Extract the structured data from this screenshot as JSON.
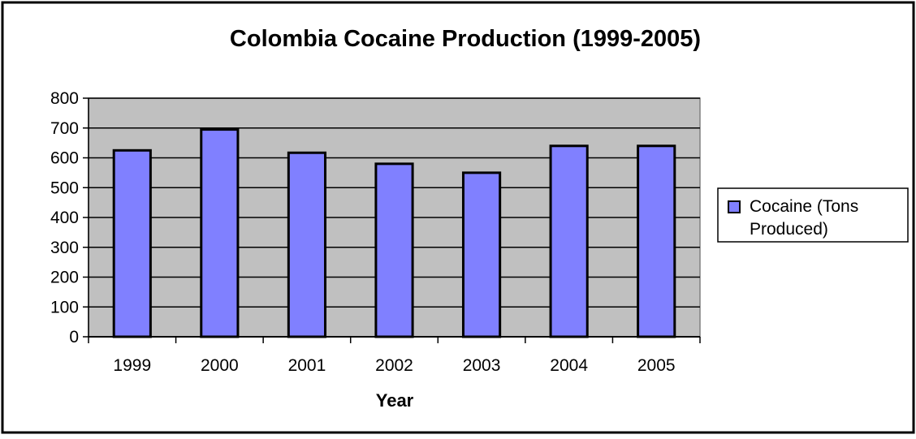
{
  "chart_data": {
    "type": "bar",
    "title": "Colombia Cocaine Production (1999-2005)",
    "xlabel": "Year",
    "ylabel": "",
    "categories": [
      "1999",
      "2000",
      "2001",
      "2002",
      "2003",
      "2004",
      "2005"
    ],
    "series": [
      {
        "name": "Cocaine (Tons Produced)",
        "legend_lines": [
          "Cocaine (Tons",
          "Produced)"
        ],
        "values": [
          625,
          695,
          617,
          580,
          550,
          640,
          640
        ],
        "color": "#8080ff"
      }
    ],
    "ylim": [
      0,
      800
    ],
    "yticks": [
      "0",
      "100",
      "200",
      "300",
      "400",
      "500",
      "600",
      "700",
      "800"
    ],
    "grid": true,
    "legend": "right",
    "plot_background": "#c0c0c0"
  }
}
